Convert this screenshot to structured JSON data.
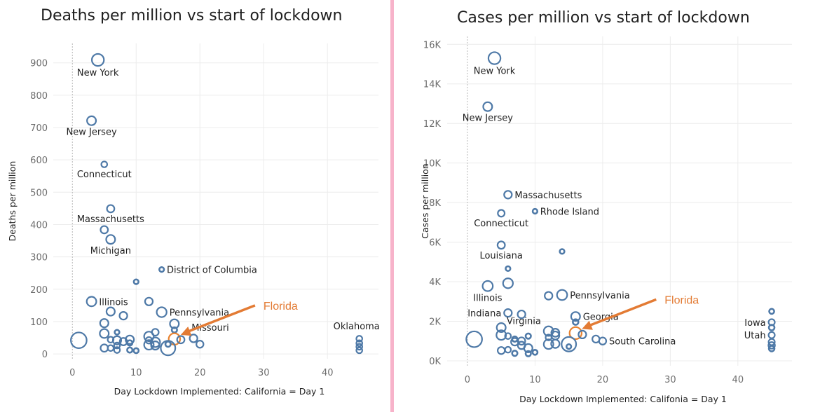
{
  "colors": {
    "point": "#4e79a7",
    "highlight": "#e8822f",
    "divider": "#f7b3ca"
  },
  "chart_data": [
    {
      "type": "scatter",
      "title": "Deaths per million vs start of lockdown",
      "xlabel": "Day Lockdown Implemented: California = Day 1",
      "ylabel": "Deaths per million",
      "xlim": [
        -3,
        48
      ],
      "ylim": [
        -15,
        960
      ],
      "xticks": [
        0,
        10,
        20,
        30,
        40
      ],
      "yticks": [
        0,
        100,
        200,
        300,
        400,
        500,
        600,
        700,
        800,
        900
      ],
      "ytick_labels": [
        "0",
        "100",
        "200",
        "300",
        "400",
        "500",
        "600",
        "700",
        "800",
        "900"
      ],
      "grid": true,
      "reference_line_x": 0,
      "points": [
        {
          "x": 4,
          "y": 909,
          "size": 3,
          "label": "New York",
          "label_pos": "below"
        },
        {
          "x": 3,
          "y": 721,
          "size": 2,
          "label": "New Jersey",
          "label_pos": "below"
        },
        {
          "x": 5,
          "y": 586,
          "size": 1,
          "label": "Connecticut",
          "label_pos": "below"
        },
        {
          "x": 6,
          "y": 449,
          "size": 1.5,
          "label": "Massachusetts",
          "label_pos": "below"
        },
        {
          "x": 5,
          "y": 384,
          "size": 1.5
        },
        {
          "x": 6,
          "y": 354,
          "size": 2,
          "label": "Michigan",
          "label_pos": "below"
        },
        {
          "x": 14,
          "y": 261,
          "size": 0.6,
          "label": "District of Columbia",
          "label_pos": "right"
        },
        {
          "x": 10,
          "y": 223,
          "size": 0.6
        },
        {
          "x": 3,
          "y": 162,
          "size": 2.2,
          "label": "Illinois",
          "label_pos": "right"
        },
        {
          "x": 12,
          "y": 162,
          "size": 1.6
        },
        {
          "x": 6,
          "y": 131,
          "size": 1.8
        },
        {
          "x": 8,
          "y": 118,
          "size": 1.6
        },
        {
          "x": 14,
          "y": 129,
          "size": 2.3,
          "label": "Pennsylvania",
          "label_pos": "right"
        },
        {
          "x": 5,
          "y": 95,
          "size": 1.8
        },
        {
          "x": 16,
          "y": 93,
          "size": 2
        },
        {
          "x": 16,
          "y": 74,
          "size": 0.8
        },
        {
          "x": 7,
          "y": 67,
          "size": 0.6
        },
        {
          "x": 5,
          "y": 63,
          "size": 2
        },
        {
          "x": 13,
          "y": 67,
          "size": 1.3
        },
        {
          "x": 1,
          "y": 42,
          "size": 4.2
        },
        {
          "x": 16,
          "y": 46,
          "size": 2.8,
          "highlight": true
        },
        {
          "x": 17,
          "y": 44,
          "size": 1.5,
          "label": "Missouri",
          "label_pos": "above-right"
        },
        {
          "x": 19,
          "y": 48,
          "size": 1.6
        },
        {
          "x": 20,
          "y": 30,
          "size": 1.4
        },
        {
          "x": 6,
          "y": 44,
          "size": 1
        },
        {
          "x": 7,
          "y": 42,
          "size": 1.8
        },
        {
          "x": 8,
          "y": 38,
          "size": 1.5
        },
        {
          "x": 9,
          "y": 44,
          "size": 1.8
        },
        {
          "x": 9,
          "y": 34,
          "size": 0.8
        },
        {
          "x": 12,
          "y": 54,
          "size": 2.2
        },
        {
          "x": 12,
          "y": 42,
          "size": 1.2
        },
        {
          "x": 12,
          "y": 28,
          "size": 2.2
        },
        {
          "x": 13,
          "y": 36,
          "size": 2.2
        },
        {
          "x": 13,
          "y": 26,
          "size": 1.8
        },
        {
          "x": 15,
          "y": 18,
          "size": 3.8
        },
        {
          "x": 15,
          "y": 30,
          "size": 0.8
        },
        {
          "x": 5,
          "y": 18,
          "size": 1.5
        },
        {
          "x": 6,
          "y": 18,
          "size": 1
        },
        {
          "x": 7,
          "y": 26,
          "size": 1
        },
        {
          "x": 7,
          "y": 12,
          "size": 1
        },
        {
          "x": 9,
          "y": 12,
          "size": 0.8
        },
        {
          "x": 10,
          "y": 10,
          "size": 0.7
        },
        {
          "x": 45,
          "y": 47,
          "size": 1
        },
        {
          "x": 45,
          "y": 33,
          "size": 1
        },
        {
          "x": 45,
          "y": 22,
          "size": 1
        },
        {
          "x": 45,
          "y": 11,
          "size": 1,
          "label": "Oklahoma",
          "label_pos": "above-left-far"
        }
      ],
      "annotation": {
        "text": "Florida",
        "target_index": 20
      }
    },
    {
      "type": "scatter",
      "title": "Cases per million vs start of lockdown",
      "xlabel": "Day Lockdown Implemented: Califonia = Day 1",
      "ylabel": "Cases per million",
      "xlim": [
        -3,
        48
      ],
      "ylim": [
        -250,
        16400
      ],
      "xticks": [
        0,
        10,
        20,
        30,
        40
      ],
      "yticks": [
        0,
        2000,
        4000,
        6000,
        8000,
        10000,
        12000,
        14000,
        16000
      ],
      "ytick_labels": [
        "0K",
        "2K",
        "4K",
        "6K",
        "8K",
        "10K",
        "12K",
        "14K",
        "16K"
      ],
      "grid": true,
      "reference_line_x": 0,
      "points": [
        {
          "x": 4,
          "y": 15300,
          "size": 3,
          "label": "New York",
          "label_pos": "below"
        },
        {
          "x": 3,
          "y": 12850,
          "size": 2,
          "label": "New Jersey",
          "label_pos": "below"
        },
        {
          "x": 6,
          "y": 8400,
          "size": 1.6,
          "label": "Massachusetts",
          "label_pos": "right"
        },
        {
          "x": 10,
          "y": 7560,
          "size": 0.6,
          "label": "Rhode Island",
          "label_pos": "right"
        },
        {
          "x": 5,
          "y": 7460,
          "size": 1.3,
          "label": "Connecticut",
          "label_pos": "below"
        },
        {
          "x": 5,
          "y": 5850,
          "size": 1.5,
          "label": "Louisiana",
          "label_pos": "below"
        },
        {
          "x": 14,
          "y": 5530,
          "size": 0.6
        },
        {
          "x": 6,
          "y": 4660,
          "size": 0.6
        },
        {
          "x": 6,
          "y": 3920,
          "size": 2.3
        },
        {
          "x": 3,
          "y": 3780,
          "size": 2.4,
          "label": "Illinois",
          "label_pos": "below"
        },
        {
          "x": 12,
          "y": 3290,
          "size": 1.6
        },
        {
          "x": 14,
          "y": 3330,
          "size": 2.4,
          "label": "Pennsylvania",
          "label_pos": "right"
        },
        {
          "x": 6,
          "y": 2420,
          "size": 1.6,
          "label": "Indiana",
          "label_pos": "left"
        },
        {
          "x": 8,
          "y": 2350,
          "size": 1.6
        },
        {
          "x": 16,
          "y": 2240,
          "size": 2,
          "label": "Georgia",
          "label_pos": "right"
        },
        {
          "x": 16,
          "y": 1960,
          "size": 0.9
        },
        {
          "x": 5,
          "y": 1680,
          "size": 2
        },
        {
          "x": 5,
          "y": 1300,
          "size": 2.2
        },
        {
          "x": 1,
          "y": 1090,
          "size": 4.2
        },
        {
          "x": 16,
          "y": 1400,
          "size": 3,
          "highlight": true
        },
        {
          "x": 17,
          "y": 1330,
          "size": 1.6
        },
        {
          "x": 12,
          "y": 1500,
          "size": 2.2,
          "label": "Virginia",
          "label_pos": "above-left"
        },
        {
          "x": 12,
          "y": 1180,
          "size": 1
        },
        {
          "x": 13,
          "y": 1420,
          "size": 1.7
        },
        {
          "x": 13,
          "y": 1280,
          "size": 1.7
        },
        {
          "x": 6,
          "y": 1250,
          "size": 1
        },
        {
          "x": 7,
          "y": 1100,
          "size": 0.8
        },
        {
          "x": 7,
          "y": 960,
          "size": 1.5
        },
        {
          "x": 8,
          "y": 1000,
          "size": 1.5
        },
        {
          "x": 9,
          "y": 1250,
          "size": 0.8
        },
        {
          "x": 8,
          "y": 780,
          "size": 1.5
        },
        {
          "x": 9,
          "y": 640,
          "size": 1.8
        },
        {
          "x": 12,
          "y": 840,
          "size": 2.2
        },
        {
          "x": 13,
          "y": 860,
          "size": 1.8
        },
        {
          "x": 15,
          "y": 840,
          "size": 3.8
        },
        {
          "x": 15,
          "y": 720,
          "size": 0.6
        },
        {
          "x": 19,
          "y": 1100,
          "size": 1.4
        },
        {
          "x": 20,
          "y": 1000,
          "size": 1.4,
          "label": "South Carolina",
          "label_pos": "right"
        },
        {
          "x": 5,
          "y": 520,
          "size": 1.4
        },
        {
          "x": 6,
          "y": 560,
          "size": 1
        },
        {
          "x": 7,
          "y": 380,
          "size": 0.8
        },
        {
          "x": 9,
          "y": 360,
          "size": 0.8
        },
        {
          "x": 10,
          "y": 430,
          "size": 0.7
        },
        {
          "x": 45,
          "y": 2500,
          "size": 0.7
        },
        {
          "x": 45,
          "y": 1950,
          "size": 1.1,
          "label": "Iowa",
          "label_pos": "left"
        },
        {
          "x": 45,
          "y": 1680,
          "size": 0.9
        },
        {
          "x": 45,
          "y": 1300,
          "size": 1.1,
          "label": "Utah",
          "label_pos": "left"
        },
        {
          "x": 45,
          "y": 950,
          "size": 1.1
        },
        {
          "x": 45,
          "y": 780,
          "size": 1.2
        },
        {
          "x": 45,
          "y": 620,
          "size": 0.9
        }
      ],
      "annotation": {
        "text": "Florida",
        "target_index": 19
      }
    }
  ]
}
